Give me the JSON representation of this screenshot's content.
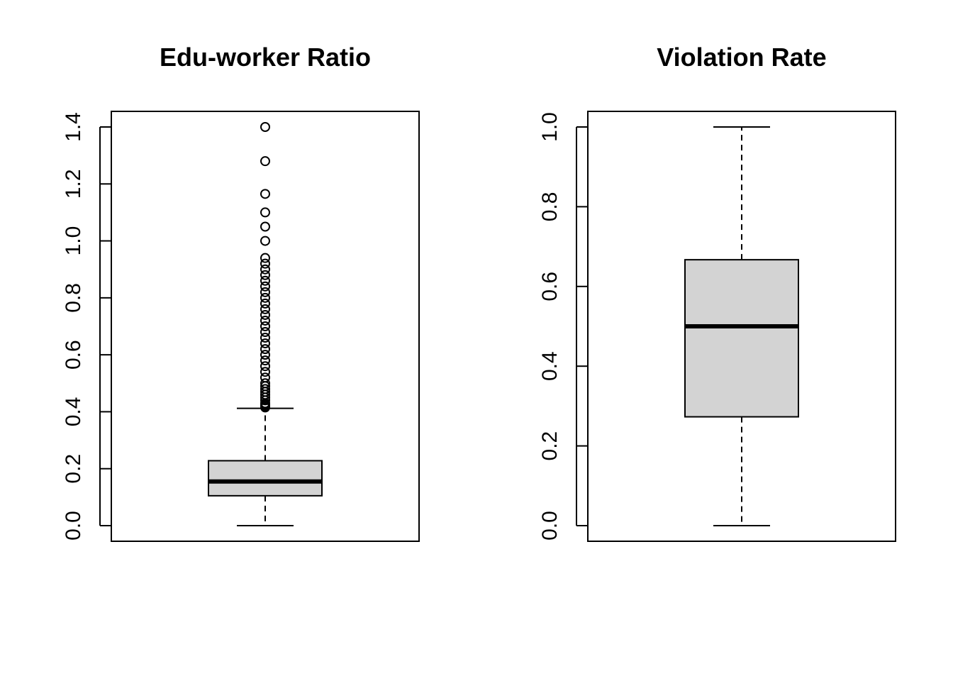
{
  "chart_data": [
    {
      "type": "box",
      "title": "Edu-worker Ratio",
      "ylim": [
        0,
        1.4
      ],
      "y_ticks": [
        "0.0",
        "0.2",
        "0.4",
        "0.6",
        "0.8",
        "1.0",
        "1.2",
        "1.4"
      ],
      "y_tick_values": [
        0.0,
        0.2,
        0.4,
        0.6,
        0.8,
        1.0,
        1.2,
        1.4
      ],
      "box": {
        "whisker_low": 0.0,
        "q1": 0.105,
        "median": 0.155,
        "q3": 0.228,
        "whisker_high": 0.412
      },
      "outliers": [
        0.415,
        0.42,
        0.425,
        0.43,
        0.44,
        0.45,
        0.46,
        0.47,
        0.48,
        0.49,
        0.5,
        0.52,
        0.54,
        0.56,
        0.58,
        0.6,
        0.62,
        0.64,
        0.66,
        0.68,
        0.7,
        0.72,
        0.74,
        0.76,
        0.78,
        0.8,
        0.82,
        0.84,
        0.86,
        0.88,
        0.9,
        0.92,
        0.94,
        1.0,
        1.05,
        1.1,
        1.165,
        1.28,
        1.4
      ],
      "box_fill": "#d3d3d3"
    },
    {
      "type": "box",
      "title": "Violation Rate",
      "ylim": [
        0,
        1.0
      ],
      "y_ticks": [
        "0.0",
        "0.2",
        "0.4",
        "0.6",
        "0.8",
        "1.0"
      ],
      "y_tick_values": [
        0.0,
        0.2,
        0.4,
        0.6,
        0.8,
        1.0
      ],
      "box": {
        "whisker_low": 0.0,
        "q1": 0.273,
        "median": 0.5,
        "q3": 0.667,
        "whisker_high": 1.0
      },
      "outliers": [],
      "box_fill": "#d3d3d3"
    }
  ]
}
